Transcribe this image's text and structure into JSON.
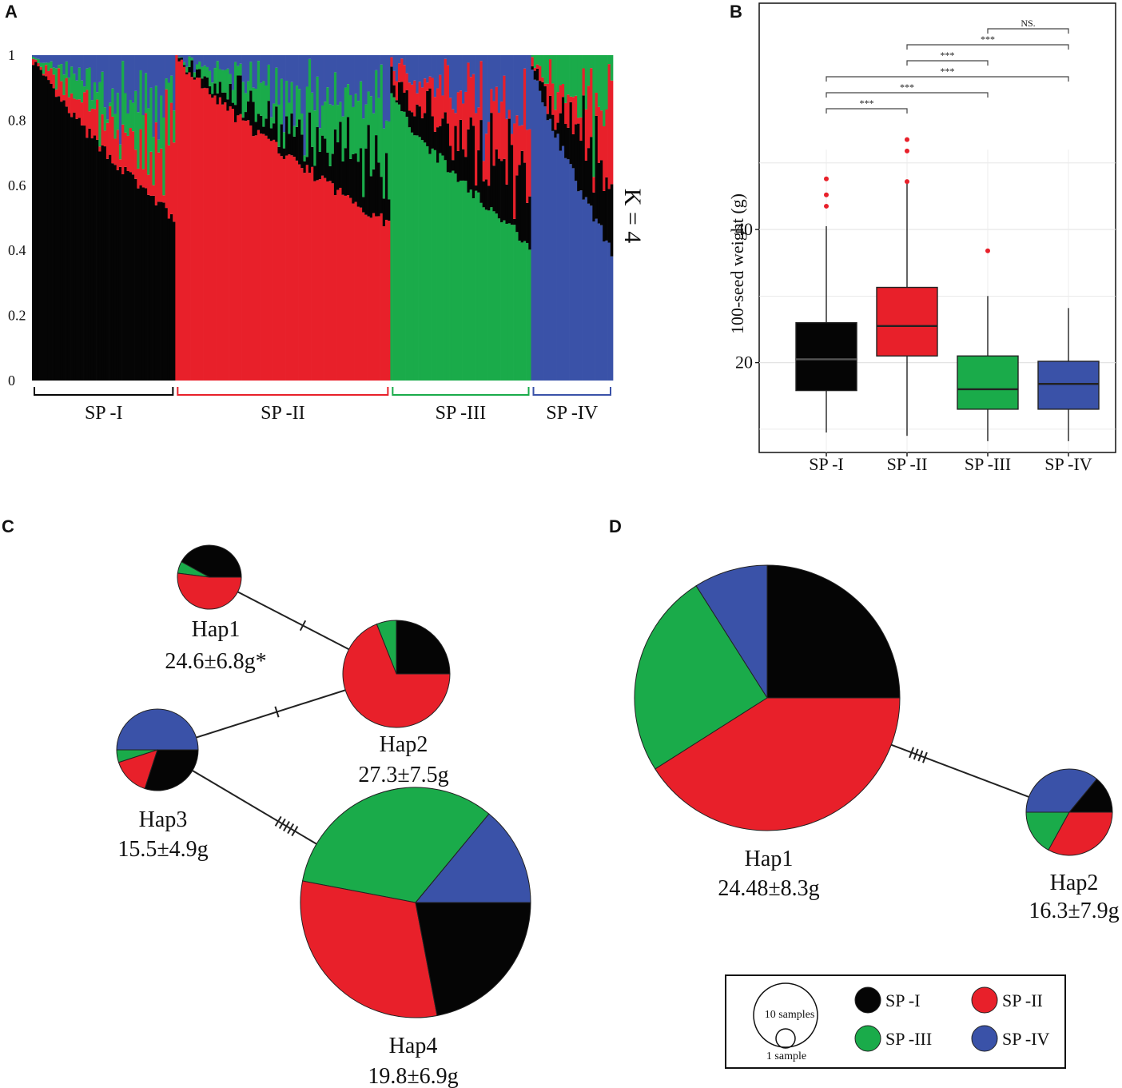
{
  "panels": {
    "a": "A",
    "b": "B",
    "c": "C",
    "d": "D"
  },
  "colors": {
    "SP-I": "#050505",
    "SP-II": "#e8202a",
    "SP-III": "#1aab4a",
    "SP-IV": "#3a52a8"
  },
  "chart_data": [
    {
      "id": "A",
      "type": "bar",
      "subtype": "stacked-admixture",
      "annotation": "K = 4",
      "ylim": [
        0,
        1
      ],
      "yticks": [
        "0",
        "0.2",
        "0.4",
        "0.6",
        "0.8",
        "1"
      ],
      "groups": [
        "SP-I",
        "SP-II",
        "SP-III",
        "SP-IV"
      ],
      "components": [
        "SP-I",
        "SP-II",
        "SP-III",
        "SP-IV"
      ],
      "group_sizes": [
        56,
        84,
        55,
        32
      ],
      "group_profiles": [
        {
          "group": "SP-I",
          "primary_start": 0.99,
          "primary_end": 0.5
        },
        {
          "group": "SP-II",
          "primary_start": 1.0,
          "primary_end": 0.48
        },
        {
          "group": "SP-III",
          "primary_start": 0.88,
          "primary_end": 0.42
        },
        {
          "group": "SP-IV",
          "primary_start": 0.97,
          "primary_end": 0.4
        }
      ]
    },
    {
      "id": "B",
      "type": "box",
      "ylabel": "100-seed weight (g)",
      "categories": [
        "SP-I",
        "SP-II",
        "SP-III",
        "SP-IV"
      ],
      "yticks": [
        20,
        40
      ],
      "ylim": [
        6.5,
        74
      ],
      "boxes": [
        {
          "group": "SP-I",
          "whisker_low": 9.5,
          "q1": 15.8,
          "median": 20.5,
          "q3": 26.0,
          "whisker_high": 40.5,
          "outliers": [
            43.5,
            45.2,
            47.6
          ]
        },
        {
          "group": "SP-II",
          "whisker_low": 9.0,
          "q1": 21.0,
          "median": 25.5,
          "q3": 31.3,
          "whisker_high": 47.0,
          "outliers": [
            47.2,
            51.8,
            53.5
          ]
        },
        {
          "group": "SP-III",
          "whisker_low": 8.2,
          "q1": 13.0,
          "median": 16.0,
          "q3": 21.0,
          "whisker_high": 30.0,
          "outliers": [
            36.8
          ]
        },
        {
          "group": "SP-IV",
          "whisker_low": 8.2,
          "q1": 13.0,
          "median": 16.8,
          "q3": 20.2,
          "whisker_high": 28.2,
          "outliers": []
        }
      ],
      "comparisons": [
        {
          "pair": [
            "SP-III",
            "SP-IV"
          ],
          "label": "NS."
        },
        {
          "pair": [
            "SP-II",
            "SP-IV"
          ],
          "label": "***"
        },
        {
          "pair": [
            "SP-II",
            "SP-III"
          ],
          "label": "***"
        },
        {
          "pair": [
            "SP-I",
            "SP-IV"
          ],
          "label": "***"
        },
        {
          "pair": [
            "SP-I",
            "SP-III"
          ],
          "label": "***"
        },
        {
          "pair": [
            "SP-I",
            "SP-II"
          ],
          "label": "***"
        }
      ]
    },
    {
      "id": "C",
      "type": "pie",
      "subtype": "haplotype-network",
      "haplotypes": [
        {
          "name": "Hap1",
          "value": "24.6±6.8g*",
          "slices": [
            {
              "group": "SP-I",
              "fraction": 0.42
            },
            {
              "group": "SP-III",
              "fraction": 0.06
            },
            {
              "group": "SP-II",
              "fraction": 0.52
            }
          ]
        },
        {
          "name": "Hap2",
          "value": "27.3±7.5g",
          "slices": [
            {
              "group": "SP-I",
              "fraction": 0.25
            },
            {
              "group": "SP-III",
              "fraction": 0.06
            },
            {
              "group": "SP-II",
              "fraction": 0.69
            }
          ]
        },
        {
          "name": "Hap3",
          "value": "15.5±4.9g",
          "slices": [
            {
              "group": "SP-IV",
              "fraction": 0.5
            },
            {
              "group": "SP-III",
              "fraction": 0.05
            },
            {
              "group": "SP-II",
              "fraction": 0.15
            },
            {
              "group": "SP-I",
              "fraction": 0.3
            }
          ]
        },
        {
          "name": "Hap4",
          "value": "19.8±6.9g",
          "slices": [
            {
              "group": "SP-IV",
              "fraction": 0.14
            },
            {
              "group": "SP-III",
              "fraction": 0.33
            },
            {
              "group": "SP-II",
              "fraction": 0.31
            },
            {
              "group": "SP-I",
              "fraction": 0.22
            }
          ]
        }
      ],
      "links": [
        {
          "from": "Hap1",
          "to": "Hap2",
          "mutations": 1
        },
        {
          "from": "Hap3",
          "to": "Hap2",
          "mutations": 1
        },
        {
          "from": "Hap3",
          "to": "Hap4",
          "mutations": 5
        }
      ]
    },
    {
      "id": "D",
      "type": "pie",
      "subtype": "haplotype-network",
      "haplotypes": [
        {
          "name": "Hap1",
          "value": "24.48±8.3g",
          "slices": [
            {
              "group": "SP-I",
              "fraction": 0.25
            },
            {
              "group": "SP-IV",
              "fraction": 0.09
            },
            {
              "group": "SP-III",
              "fraction": 0.25
            },
            {
              "group": "SP-II",
              "fraction": 0.41
            }
          ]
        },
        {
          "name": "Hap2",
          "value": "16.3±7.9g",
          "slices": [
            {
              "group": "SP-I",
              "fraction": 0.14
            },
            {
              "group": "SP-IV",
              "fraction": 0.36
            },
            {
              "group": "SP-III",
              "fraction": 0.17
            },
            {
              "group": "SP-II",
              "fraction": 0.33
            }
          ]
        }
      ],
      "links": [
        {
          "from": "Hap1",
          "to": "Hap2",
          "mutations": 4
        }
      ]
    }
  ],
  "legend": {
    "size_large": "10 samples",
    "size_small": "1 sample",
    "items": [
      "SP-I",
      "SP-II",
      "SP-III",
      "SP-IV"
    ]
  }
}
